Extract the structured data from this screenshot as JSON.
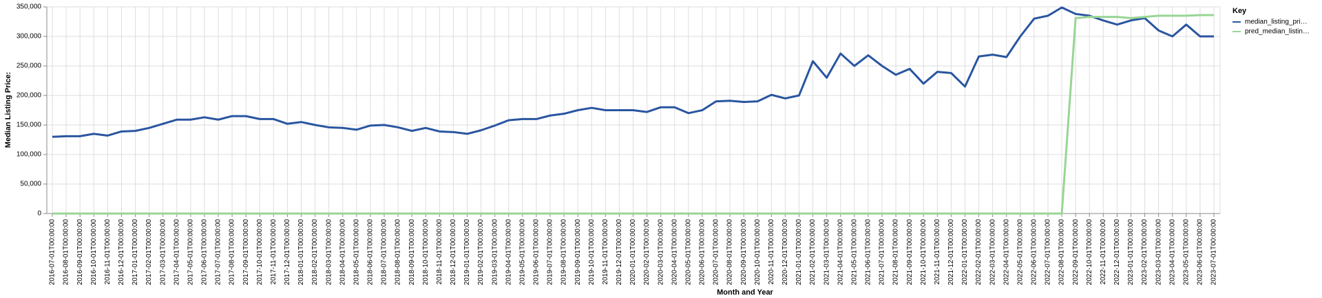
{
  "chart_data": {
    "type": "line",
    "x_label": "Month and Year",
    "y_label": "Median Listing Price:",
    "legend_title": "Key",
    "legend_position": "right",
    "grid": true,
    "categories": [
      "2016-07-01T00:00:00",
      "2016-08-01T00:00:00",
      "2016-09-01T00:00:00",
      "2016-10-01T00:00:00",
      "2016-11-01T00:00:00",
      "2016-12-01T00:00:00",
      "2017-01-01T00:00:00",
      "2017-02-01T00:00:00",
      "2017-03-01T00:00:00",
      "2017-04-01T00:00:00",
      "2017-05-01T00:00:00",
      "2017-06-01T00:00:00",
      "2017-07-01T00:00:00",
      "2017-08-01T00:00:00",
      "2017-09-01T00:00:00",
      "2017-10-01T00:00:00",
      "2017-11-01T00:00:00",
      "2017-12-01T00:00:00",
      "2018-01-01T00:00:00",
      "2018-02-01T00:00:00",
      "2018-03-01T00:00:00",
      "2018-04-01T00:00:00",
      "2018-05-01T00:00:00",
      "2018-06-01T00:00:00",
      "2018-07-01T00:00:00",
      "2018-08-01T00:00:00",
      "2018-09-01T00:00:00",
      "2018-10-01T00:00:00",
      "2018-11-01T00:00:00",
      "2018-12-01T00:00:00",
      "2019-01-01T00:00:00",
      "2019-02-01T00:00:00",
      "2019-03-01T00:00:00",
      "2019-04-01T00:00:00",
      "2019-05-01T00:00:00",
      "2019-06-01T00:00:00",
      "2019-07-01T00:00:00",
      "2019-08-01T00:00:00",
      "2019-09-01T00:00:00",
      "2019-10-01T00:00:00",
      "2019-11-01T00:00:00",
      "2019-12-01T00:00:00",
      "2020-01-01T00:00:00",
      "2020-02-01T00:00:00",
      "2020-03-01T00:00:00",
      "2020-04-01T00:00:00",
      "2020-05-01T00:00:00",
      "2020-06-01T00:00:00",
      "2020-07-01T00:00:00",
      "2020-08-01T00:00:00",
      "2020-09-01T00:00:00",
      "2020-10-01T00:00:00",
      "2020-11-01T00:00:00",
      "2020-12-01T00:00:00",
      "2021-01-01T00:00:00",
      "2021-02-01T00:00:00",
      "2021-03-01T00:00:00",
      "2021-04-01T00:00:00",
      "2021-05-01T00:00:00",
      "2021-06-01T00:00:00",
      "2021-07-01T00:00:00",
      "2021-08-01T00:00:00",
      "2021-09-01T00:00:00",
      "2021-10-01T00:00:00",
      "2021-11-01T00:00:00",
      "2021-12-01T00:00:00",
      "2022-01-01T00:00:00",
      "2022-02-01T00:00:00",
      "2022-03-01T00:00:00",
      "2022-04-01T00:00:00",
      "2022-05-01T00:00:00",
      "2022-06-01T00:00:00",
      "2022-07-01T00:00:00",
      "2022-08-01T00:00:00",
      "2022-09-01T00:00:00",
      "2022-10-01T00:00:00",
      "2022-11-01T00:00:00",
      "2022-12-01T00:00:00",
      "2023-01-01T00:00:00",
      "2023-02-01T00:00:00",
      "2023-03-01T00:00:00",
      "2023-04-01T00:00:00",
      "2023-05-01T00:00:00",
      "2023-06-01T00:00:00",
      "2023-07-01T00:00:00"
    ],
    "series": [
      {
        "name": "median_listing_pri…",
        "color": "#2955a0",
        "values": [
          130000,
          131000,
          131000,
          135000,
          132000,
          139000,
          140000,
          145000,
          152000,
          159000,
          159000,
          163000,
          159000,
          165000,
          165000,
          160000,
          160000,
          152000,
          155000,
          150000,
          146000,
          145000,
          142000,
          149000,
          150000,
          146000,
          140000,
          145000,
          139000,
          138000,
          135000,
          141000,
          149000,
          158000,
          160000,
          160000,
          166000,
          169000,
          175000,
          179000,
          175000,
          175000,
          175000,
          172000,
          180000,
          180000,
          170000,
          175000,
          190000,
          191000,
          189000,
          190000,
          201000,
          195000,
          200000,
          258000,
          230000,
          271000,
          250000,
          268000,
          250000,
          235000,
          245000,
          220000,
          240000,
          238000,
          215000,
          266000,
          269000,
          265000,
          300000,
          330000,
          335000,
          349000,
          338000,
          335000,
          327000,
          320000,
          327000,
          331000,
          310000,
          300000,
          320000,
          300000,
          300000
        ]
      },
      {
        "name": "pred_median_listin…",
        "color": "#98d594",
        "values": [
          0,
          0,
          0,
          0,
          0,
          0,
          0,
          0,
          0,
          0,
          0,
          0,
          0,
          0,
          0,
          0,
          0,
          0,
          0,
          0,
          0,
          0,
          0,
          0,
          0,
          0,
          0,
          0,
          0,
          0,
          0,
          0,
          0,
          0,
          0,
          0,
          0,
          0,
          0,
          0,
          0,
          0,
          0,
          0,
          0,
          0,
          0,
          0,
          0,
          0,
          0,
          0,
          0,
          0,
          0,
          0,
          0,
          0,
          0,
          0,
          0,
          0,
          0,
          0,
          0,
          0,
          0,
          0,
          0,
          0,
          0,
          0,
          0,
          0,
          331000,
          333000,
          333000,
          333000,
          331000,
          333000,
          335000,
          335000,
          335000,
          336000,
          336000
        ]
      }
    ],
    "ylim": [
      0,
      350000
    ],
    "yticks": [
      0,
      {
        "value": 50000,
        "label": "50,000"
      },
      {
        "value": 100000,
        "label": "100,000"
      },
      {
        "value": 150000,
        "label": "150,000"
      },
      {
        "value": 200000,
        "label": "200,000"
      },
      {
        "value": 250000,
        "label": "250,000"
      },
      {
        "value": 300000,
        "label": "300,000"
      },
      {
        "value": 350000,
        "label": "350,000"
      }
    ]
  }
}
